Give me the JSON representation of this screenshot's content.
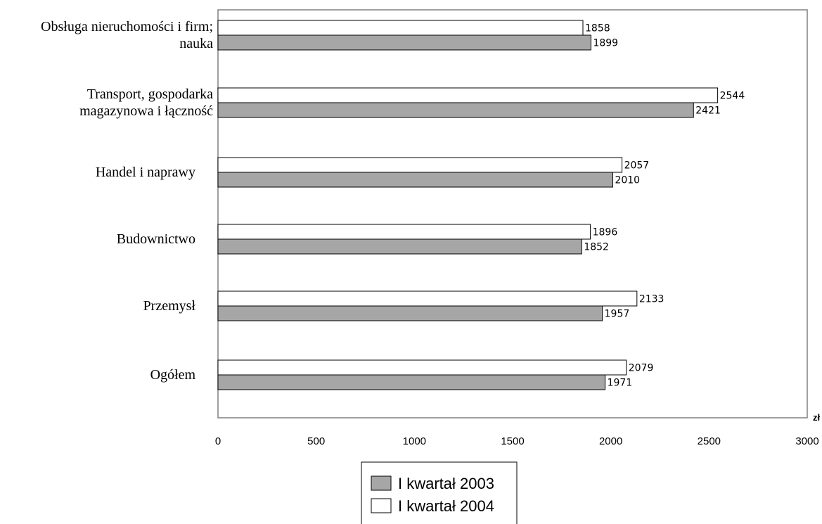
{
  "chart_data": {
    "type": "bar",
    "orientation": "horizontal",
    "unit_label": "zł",
    "categories": [
      [
        "Obsługa nieruchomości i firm;",
        "nauka"
      ],
      [
        "Transport, gospodarka",
        "magazynowa i łączność"
      ],
      [
        "Handel i naprawy"
      ],
      [
        "Budownictwo"
      ],
      [
        "Przemysł"
      ],
      [
        "Ogółem"
      ]
    ],
    "series": [
      {
        "name": "I kwartał 2004",
        "color": "#ffffff",
        "values": [
          1858,
          2544,
          2057,
          1896,
          2133,
          2079
        ]
      },
      {
        "name": "I kwartał 2003",
        "color": "#a6a6a6",
        "values": [
          1899,
          2421,
          2010,
          1852,
          1957,
          1971
        ]
      }
    ],
    "xlim": [
      0,
      3000
    ],
    "xticks": [
      0,
      500,
      1000,
      1500,
      2000,
      2500,
      3000
    ],
    "grid": false,
    "legend_position": "bottom",
    "legend_order": [
      "I kwartał 2003",
      "I kwartał 2004"
    ]
  }
}
